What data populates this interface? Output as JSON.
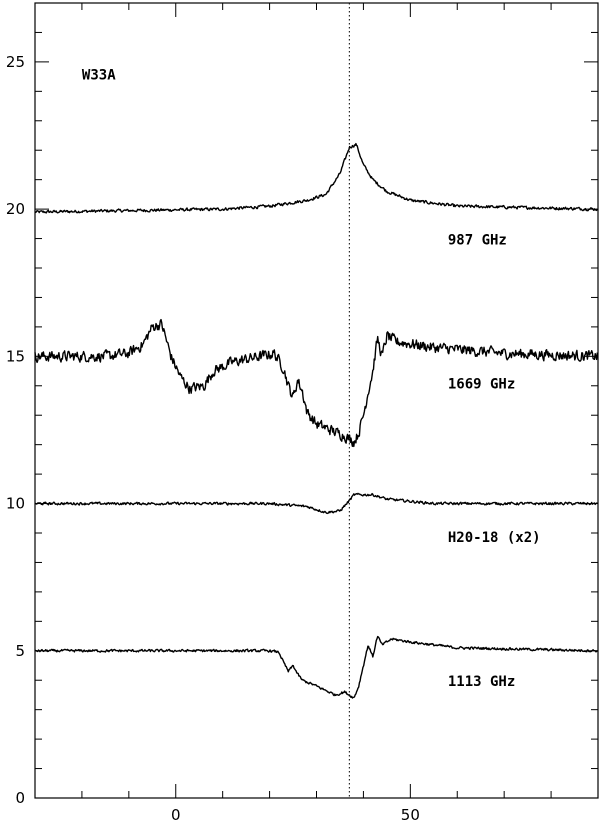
{
  "chart_data": {
    "type": "line",
    "title": "",
    "xlabel": "",
    "ylabel": "",
    "xlim": [
      -30,
      90
    ],
    "ylim": [
      0,
      27
    ],
    "annotation": "W33A",
    "reference_line": {
      "x": 37,
      "style": "dotted"
    },
    "x_ticks": [
      {
        "value": 0,
        "label": "0"
      },
      {
        "value": 50,
        "label": "50"
      }
    ],
    "y_ticks": [
      {
        "value": 0,
        "label": "0"
      },
      {
        "value": 5,
        "label": "5"
      },
      {
        "value": 10,
        "label": "10"
      },
      {
        "value": 15,
        "label": "15"
      },
      {
        "value": 20,
        "label": "20"
      },
      {
        "value": 25,
        "label": "25"
      }
    ],
    "series": [
      {
        "name": "987 GHz",
        "label_pos": [
          58,
          18.8
        ],
        "noise": 0.07,
        "points": [
          [
            -30,
            19.9
          ],
          [
            -10,
            19.95
          ],
          [
            10,
            20.0
          ],
          [
            20,
            20.1
          ],
          [
            28,
            20.3
          ],
          [
            32,
            20.5
          ],
          [
            35,
            21.2
          ],
          [
            37,
            22.1
          ],
          [
            38.5,
            22.2
          ],
          [
            40,
            21.5
          ],
          [
            42,
            21.0
          ],
          [
            45,
            20.6
          ],
          [
            50,
            20.3
          ],
          [
            60,
            20.1
          ],
          [
            90,
            20.0
          ]
        ]
      },
      {
        "name": "1669 GHz",
        "label_pos": [
          58,
          13.9
        ],
        "noise": 0.25,
        "points": [
          [
            -30,
            15.0
          ],
          [
            -15,
            15.0
          ],
          [
            -10,
            15.1
          ],
          [
            -7,
            15.4
          ],
          [
            -5,
            16.0
          ],
          [
            -3,
            16.1
          ],
          [
            -1,
            15.0
          ],
          [
            1,
            14.3
          ],
          [
            3,
            13.9
          ],
          [
            6,
            14.0
          ],
          [
            8,
            14.5
          ],
          [
            12,
            14.8
          ],
          [
            18,
            15.0
          ],
          [
            21,
            15.1
          ],
          [
            23,
            14.6
          ],
          [
            24,
            14.0
          ],
          [
            25,
            13.6
          ],
          [
            26,
            14.2
          ],
          [
            27,
            13.8
          ],
          [
            28,
            13.1
          ],
          [
            30,
            12.7
          ],
          [
            33,
            12.5
          ],
          [
            36,
            12.3
          ],
          [
            38,
            12.1
          ],
          [
            39,
            12.4
          ],
          [
            40,
            13.0
          ],
          [
            41,
            13.8
          ],
          [
            42,
            14.5
          ],
          [
            43,
            15.6
          ],
          [
            44,
            15.0
          ],
          [
            45,
            15.7
          ],
          [
            47,
            15.5
          ],
          [
            55,
            15.3
          ],
          [
            70,
            15.1
          ],
          [
            90,
            15.0
          ]
        ]
      },
      {
        "name": "H20-18 (x2)",
        "label_pos": [
          58,
          8.7
        ],
        "noise": 0.06,
        "points": [
          [
            -30,
            10.0
          ],
          [
            20,
            10.0
          ],
          [
            28,
            9.9
          ],
          [
            32,
            9.7
          ],
          [
            35,
            9.75
          ],
          [
            37,
            10.1
          ],
          [
            38,
            10.3
          ],
          [
            42,
            10.3
          ],
          [
            45,
            10.15
          ],
          [
            55,
            10.0
          ],
          [
            90,
            10.0
          ]
        ]
      },
      {
        "name": "1113 GHz",
        "label_pos": [
          58,
          3.8
        ],
        "noise": 0.06,
        "points": [
          [
            -30,
            5.0
          ],
          [
            0,
            5.0
          ],
          [
            20,
            5.0
          ],
          [
            22,
            4.95
          ],
          [
            23,
            4.6
          ],
          [
            24,
            4.3
          ],
          [
            25,
            4.5
          ],
          [
            26,
            4.2
          ],
          [
            27,
            4.0
          ],
          [
            30,
            3.8
          ],
          [
            34,
            3.5
          ],
          [
            36,
            3.6
          ],
          [
            38,
            3.4
          ],
          [
            39,
            3.8
          ],
          [
            40,
            4.5
          ],
          [
            41,
            5.2
          ],
          [
            42,
            4.8
          ],
          [
            43,
            5.5
          ],
          [
            44,
            5.2
          ],
          [
            46,
            5.4
          ],
          [
            50,
            5.3
          ],
          [
            60,
            5.1
          ],
          [
            90,
            5.0
          ]
        ]
      }
    ]
  }
}
